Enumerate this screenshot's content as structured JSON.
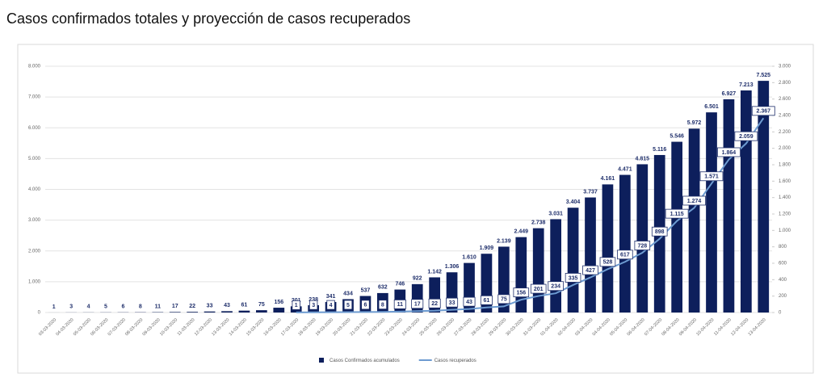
{
  "chart_data": {
    "type": "bar_line",
    "title": "Casos confirmados totales y proyección de casos recuperados",
    "categories": [
      "03-03-2020",
      "04-03-2020",
      "05-03-2020",
      "06-03-2020",
      "07-03-2020",
      "08-03-2020",
      "09-03-2020",
      "10-03-2020",
      "11-03-2020",
      "12-03-2020",
      "13-03-2020",
      "14-03-2020",
      "15-03-2020",
      "16-03-2020",
      "17-03-2020",
      "18-03-2020",
      "19-03-2020",
      "20-03-2020",
      "21-03-2020",
      "22-03-2020",
      "23-03-2020",
      "24-03-2020",
      "25-03-2020",
      "26-03-2020",
      "27-03-2020",
      "28-03-2020",
      "29-03-2020",
      "30-03-2020",
      "31-03-2020",
      "01-04-2020",
      "02-04-2020",
      "03-04-2020",
      "04-04-2020",
      "05-04-2020",
      "06-04-2020",
      "07-04-2020",
      "08-04-2020",
      "09-04-2020",
      "10-04-2020",
      "11-04-2020",
      "12-04-2020",
      "13-04-2020"
    ],
    "series": [
      {
        "name": "Casos Confirmados acumulados",
        "color": "#0d1f5c",
        "kind": "bar",
        "values": [
          1,
          3,
          4,
          5,
          6,
          8,
          11,
          17,
          22,
          33,
          43,
          61,
          75,
          156,
          201,
          238,
          341,
          434,
          537,
          632,
          746,
          922,
          1142,
          1306,
          1610,
          1909,
          2139,
          2449,
          2738,
          3031,
          3404,
          3737,
          4161,
          4471,
          4815,
          5116,
          5546,
          5972,
          6501,
          6927,
          7213,
          7525
        ],
        "value_labels": [
          "1",
          "3",
          "4",
          "5",
          "6",
          "8",
          "11",
          "17",
          "22",
          "33",
          "43",
          "61",
          "75",
          "156",
          "201",
          "238",
          "341",
          "434",
          "537",
          "632",
          "746",
          "922",
          "1.142",
          "1.306",
          "1.610",
          "1.909",
          "2.139",
          "2.449",
          "2.738",
          "3.031",
          "3.404",
          "3.737",
          "4.161",
          "4.471",
          "4.815",
          "5.116",
          "5.546",
          "5.972",
          "6.501",
          "6.927",
          "7.213",
          "7.525"
        ]
      },
      {
        "name": "Casos recuperados",
        "color": "#6d9bd1",
        "kind": "line",
        "axis": "y2",
        "values": [
          null,
          null,
          null,
          null,
          null,
          null,
          null,
          null,
          null,
          null,
          null,
          null,
          null,
          null,
          1,
          3,
          4,
          5,
          6,
          8,
          11,
          17,
          22,
          33,
          43,
          61,
          75,
          156,
          201,
          234,
          335,
          427,
          528,
          617,
          728,
          898,
          1115,
          1274,
          1571,
          1864,
          2059,
          2367
        ],
        "value_labels": [
          null,
          null,
          null,
          null,
          null,
          null,
          null,
          null,
          null,
          null,
          null,
          null,
          null,
          null,
          "1",
          "3",
          "4",
          "5",
          "6",
          "8",
          "11",
          "17",
          "22",
          "33",
          "43",
          "61",
          "75",
          "156",
          "201",
          "234",
          "335",
          "427",
          "528",
          "617",
          "728",
          "898",
          "1.115",
          "1.274",
          "1.571",
          "1.864",
          "2.059",
          "2.367"
        ]
      }
    ],
    "ylim": [
      0,
      8000
    ],
    "yticks": [
      0,
      {
        "value": 1000,
        "label": "1.000"
      },
      {
        "value": 2000,
        "label": "2.000"
      },
      {
        "value": 3000,
        "label": "3.000"
      },
      {
        "value": 4000,
        "label": "4.000"
      },
      {
        "value": 5000,
        "label": "5.000"
      },
      {
        "value": 6000,
        "label": "6.000"
      },
      {
        "value": 7000,
        "label": "7.000"
      },
      {
        "value": 8000,
        "label": "8.000"
      }
    ],
    "y2lim": [
      0,
      3000
    ],
    "y2ticks": [
      0,
      200,
      400,
      600,
      800,
      {
        "value": 1000,
        "label": "1.000"
      },
      {
        "value": 1200,
        "label": "1.200"
      },
      {
        "value": 1400,
        "label": "1.400"
      },
      {
        "value": 1600,
        "label": "1.600"
      },
      {
        "value": 1800,
        "label": "1.800"
      },
      {
        "value": 2000,
        "label": "2.000"
      },
      {
        "value": 2200,
        "label": "2.200"
      },
      {
        "value": 2400,
        "label": "2.400"
      },
      {
        "value": 2600,
        "label": "2.600"
      },
      {
        "value": 2800,
        "label": "2.800"
      },
      {
        "value": 3000,
        "label": "3.000"
      }
    ],
    "grid": true
  }
}
